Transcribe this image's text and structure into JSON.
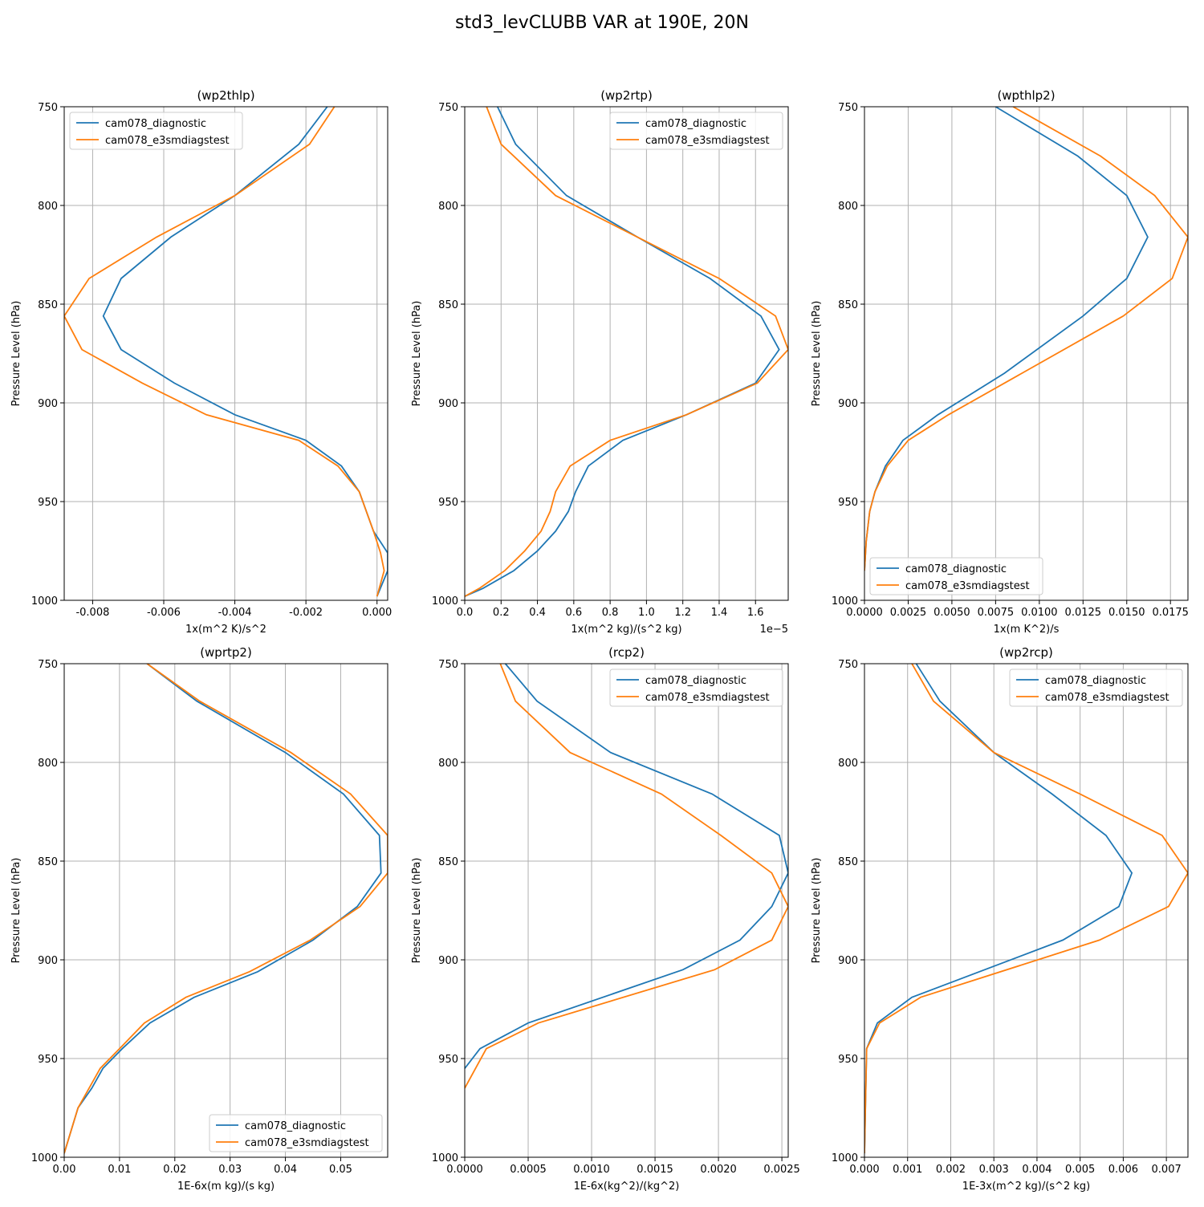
{
  "figure": {
    "title": "std3_levCLUBB VAR at 190E, 20N"
  },
  "colors": {
    "series1": "#1f77b4",
    "series2": "#ff7f0e",
    "grid": "#b0b0b0",
    "axis": "#000000"
  },
  "chart_data": [
    {
      "type": "line",
      "title": "(wp2thlp)",
      "xlabel": "1x(m^2 K)/s^2",
      "ylabel": "Pressure Level (hPa)",
      "xlim": [
        -0.0088,
        0.0003
      ],
      "ylim": [
        1000,
        750
      ],
      "xticks": [
        "-0.008",
        "-0.006",
        "-0.004",
        "-0.002",
        "0.000"
      ],
      "yticks": [
        "750",
        "800",
        "850",
        "900",
        "950",
        "1000"
      ],
      "legend_loc": "upper left",
      "grid": true,
      "series": [
        {
          "name": "cam078_diagnostic",
          "x": [
            -0.0014,
            -0.0022,
            -0.004,
            -0.0058,
            -0.0072,
            -0.0077,
            -0.0072,
            -0.0057,
            -0.004,
            -0.002,
            -0.001,
            -0.0005,
            -0.0001,
            0.0003,
            0.0003,
            0.0
          ],
          "y": [
            750,
            769,
            795,
            816,
            837,
            856,
            873,
            890,
            906,
            919,
            932,
            945,
            965,
            976,
            985,
            998
          ]
        },
        {
          "name": "cam078_e3smdiagstest",
          "x": [
            -0.0012,
            -0.0019,
            -0.004,
            -0.0062,
            -0.0081,
            -0.0088,
            -0.0083,
            -0.0066,
            -0.0048,
            -0.0022,
            -0.0011,
            -0.0005,
            -0.0001,
            0.0001,
            0.0002,
            0.0
          ],
          "y": [
            750,
            769,
            795,
            816,
            837,
            856,
            873,
            890,
            906,
            919,
            932,
            945,
            965,
            976,
            985,
            998
          ]
        }
      ]
    },
    {
      "type": "line",
      "title": "(wp2rtp)",
      "xlabel": "1x(m^2 kg)/(s^2 kg)",
      "ylabel": "Pressure Level (hPa)",
      "offset_text": "1e−5",
      "xlim": [
        0,
        1.78
      ],
      "ylim": [
        1000,
        750
      ],
      "xticks": [
        "0.0",
        "0.2",
        "0.4",
        "0.6",
        "0.8",
        "1.0",
        "1.2",
        "1.4",
        "1.6"
      ],
      "yticks": [
        "750",
        "800",
        "850",
        "900",
        "950",
        "1000"
      ],
      "legend_loc": "upper right",
      "grid": true,
      "series": [
        {
          "name": "cam078_diagnostic",
          "x": [
            0.18,
            0.28,
            0.56,
            0.95,
            1.35,
            1.63,
            1.73,
            1.6,
            1.22,
            0.87,
            0.68,
            0.61,
            0.57,
            0.5,
            0.4,
            0.27,
            0.1,
            0.0
          ],
          "y": [
            750,
            769,
            795,
            816,
            837,
            856,
            873,
            890,
            906,
            919,
            932,
            945,
            955,
            965,
            975,
            985,
            994,
            998
          ]
        },
        {
          "name": "cam078_e3smdiagstest",
          "x": [
            0.12,
            0.2,
            0.5,
            0.95,
            1.4,
            1.71,
            1.78,
            1.61,
            1.22,
            0.8,
            0.58,
            0.5,
            0.47,
            0.42,
            0.33,
            0.22,
            0.08,
            0.0
          ],
          "y": [
            750,
            769,
            795,
            816,
            837,
            856,
            873,
            890,
            906,
            919,
            932,
            945,
            955,
            965,
            975,
            985,
            994,
            998
          ]
        }
      ]
    },
    {
      "type": "line",
      "title": "(wpthlp2)",
      "xlabel": "1x(m K^2)/s",
      "ylabel": "Pressure Level (hPa)",
      "xlim": [
        0,
        0.0185
      ],
      "ylim": [
        1000,
        750
      ],
      "xticks": [
        "0.0000",
        "0.0025",
        "0.0050",
        "0.0075",
        "0.0100",
        "0.0125",
        "0.0150",
        "0.0175"
      ],
      "yticks": [
        "750",
        "800",
        "850",
        "900",
        "950",
        "1000"
      ],
      "legend_loc": "lower left",
      "grid": true,
      "series": [
        {
          "name": "cam078_diagnostic",
          "x": [
            0.0075,
            0.0122,
            0.015,
            0.0162,
            0.015,
            0.0125,
            0.008,
            0.0042,
            0.0022,
            0.0012,
            0.0006,
            0.0003,
            0.0001,
            0.0
          ],
          "y": [
            750,
            775,
            795,
            816,
            837,
            856,
            885,
            906,
            919,
            932,
            945,
            955,
            970,
            985
          ]
        },
        {
          "name": "cam078_e3smdiagstest",
          "x": [
            0.0085,
            0.0135,
            0.0166,
            0.0185,
            0.0176,
            0.0148,
            0.009,
            0.0048,
            0.0025,
            0.0013,
            0.0006,
            0.0003,
            0.0001,
            0.0
          ],
          "y": [
            750,
            775,
            795,
            816,
            837,
            856,
            885,
            906,
            919,
            932,
            945,
            955,
            970,
            985
          ]
        }
      ]
    },
    {
      "type": "line",
      "title": "(wprtp2)",
      "xlabel": "1E-6x(m kg)/(s kg)",
      "ylabel": "Pressure Level (hPa)",
      "xlim": [
        0,
        0.0585
      ],
      "ylim": [
        1000,
        750
      ],
      "xticks": [
        "0.00",
        "0.01",
        "0.02",
        "0.03",
        "0.04",
        "0.05"
      ],
      "yticks": [
        "750",
        "800",
        "850",
        "900",
        "950",
        "1000"
      ],
      "legend_loc": "lower right",
      "grid": true,
      "series": [
        {
          "name": "cam078_diagnostic",
          "x": [
            0.015,
            0.024,
            0.04,
            0.0505,
            0.057,
            0.0573,
            0.053,
            0.045,
            0.035,
            0.0235,
            0.0155,
            0.0105,
            0.007,
            0.005,
            0.0025,
            0.0
          ],
          "y": [
            750,
            769,
            795,
            816,
            837,
            856,
            873,
            890,
            906,
            919,
            932,
            945,
            955,
            965,
            975,
            998
          ]
        },
        {
          "name": "cam078_e3smdiagstest",
          "x": [
            0.015,
            0.0245,
            0.041,
            0.0518,
            0.0585,
            0.0585,
            0.0535,
            0.0445,
            0.0335,
            0.022,
            0.0145,
            0.01,
            0.0065,
            0.0045,
            0.0025,
            0.0
          ],
          "y": [
            750,
            769,
            795,
            816,
            837,
            856,
            873,
            890,
            906,
            919,
            932,
            945,
            955,
            965,
            975,
            998
          ]
        }
      ]
    },
    {
      "type": "line",
      "title": "(rcp2)",
      "xlabel": "1E-6x(kg^2)/(kg^2)",
      "ylabel": "Pressure Level (hPa)",
      "xlim": [
        0,
        0.00255
      ],
      "ylim": [
        1000,
        750
      ],
      "xticks": [
        "0.0000",
        "0.0005",
        "0.0010",
        "0.0015",
        "0.0020",
        "0.0025"
      ],
      "yticks": [
        "750",
        "800",
        "850",
        "900",
        "950",
        "1000"
      ],
      "legend_loc": "upper right",
      "grid": true,
      "series": [
        {
          "name": "cam078_diagnostic",
          "x": [
            0.00032,
            0.00057,
            0.00115,
            0.00195,
            0.00248,
            0.00255,
            0.00242,
            0.00217,
            0.00172,
            0.0005,
            0.00012,
            0.0
          ],
          "y": [
            750,
            769,
            795,
            816,
            837,
            856,
            873,
            890,
            905,
            932,
            945,
            955
          ]
        },
        {
          "name": "cam078_e3smdiagstest",
          "x": [
            0.00028,
            0.0004,
            0.00083,
            0.00155,
            0.00202,
            0.00242,
            0.00255,
            0.00242,
            0.00197,
            0.00058,
            0.00017,
            0.0
          ],
          "y": [
            750,
            769,
            795,
            816,
            837,
            856,
            873,
            890,
            905,
            932,
            945,
            965
          ]
        }
      ]
    },
    {
      "type": "line",
      "title": "(wp2rcp)",
      "xlabel": "1E-3x(m^2 kg)/(s^2 kg)",
      "ylabel": "Pressure Level (hPa)",
      "xlim": [
        0,
        0.0075
      ],
      "ylim": [
        1000,
        750
      ],
      "xticks": [
        "0.000",
        "0.001",
        "0.002",
        "0.003",
        "0.004",
        "0.005",
        "0.006",
        "0.007"
      ],
      "yticks": [
        "750",
        "800",
        "850",
        "900",
        "950",
        "1000"
      ],
      "legend_loc": "upper right",
      "grid": true,
      "series": [
        {
          "name": "cam078_diagnostic",
          "x": [
            0.0012,
            0.00175,
            0.003,
            0.00435,
            0.0056,
            0.0062,
            0.0059,
            0.0046,
            0.0011,
            0.0003,
            5e-05,
            0.0
          ],
          "y": [
            750,
            769,
            795,
            816,
            837,
            856,
            873,
            890,
            919,
            932,
            945,
            998
          ]
        },
        {
          "name": "cam078_e3smdiagstest",
          "x": [
            0.0011,
            0.0016,
            0.003,
            0.005,
            0.0069,
            0.0075,
            0.00705,
            0.00545,
            0.0013,
            0.00035,
            5e-05,
            0.0
          ],
          "y": [
            750,
            769,
            795,
            816,
            837,
            856,
            873,
            890,
            919,
            932,
            945,
            998
          ]
        }
      ]
    }
  ]
}
